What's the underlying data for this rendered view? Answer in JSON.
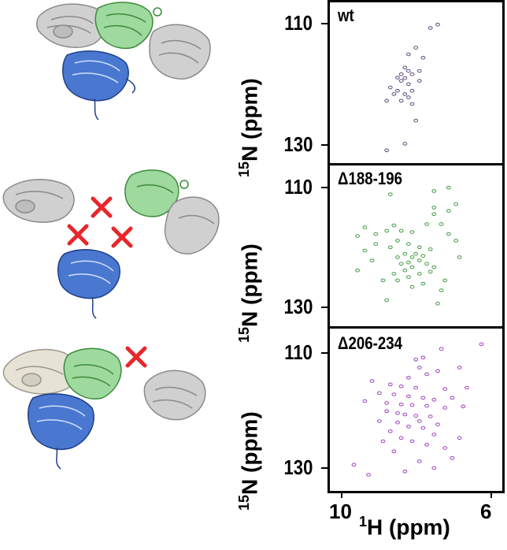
{
  "figure": {
    "x_tick_left": "10",
    "x_tick_right": "6",
    "x_label_sup": "1",
    "x_label_main": "H (ppm)",
    "y_label_sup": "15",
    "y_label_main": "N (ppm)"
  },
  "colors": {
    "gray_domain": "#a9a9a9",
    "green_domain": "#7fcf7f",
    "blue_domain": "#2f5fb8",
    "cross": "#e8262b",
    "wt_peaks": "#5a4a7a",
    "d188_peaks": "#3f9a3f",
    "d206_peaks": "#9b3fbf"
  },
  "chart_data": [
    {
      "type": "scatter",
      "panel_label": "wt",
      "y_ticks": [
        "110",
        "130"
      ],
      "x_axis_units": "1H (ppm)",
      "y_axis_units": "15N (ppm)",
      "xlim": [
        10.2,
        5.9
      ],
      "ylim": [
        110,
        130
      ],
      "peaks": [
        [
          7.5,
          110.5
        ],
        [
          7.7,
          111
        ],
        [
          8.1,
          114
        ],
        [
          8.3,
          115
        ],
        [
          7.9,
          115.5
        ],
        [
          8.4,
          117
        ],
        [
          8.3,
          117.5
        ],
        [
          8.0,
          117.5
        ],
        [
          8.5,
          118
        ],
        [
          8.2,
          118
        ],
        [
          8.6,
          118.5
        ],
        [
          8.4,
          118.6
        ],
        [
          8.0,
          119
        ],
        [
          8.5,
          119
        ],
        [
          8.3,
          119.5
        ],
        [
          8.8,
          120
        ],
        [
          8.2,
          120.5
        ],
        [
          8.6,
          120.5
        ],
        [
          8.4,
          121
        ],
        [
          8.7,
          121
        ],
        [
          8.3,
          121.5
        ],
        [
          8.9,
          122
        ],
        [
          8.5,
          122
        ],
        [
          8.2,
          122.5
        ],
        [
          8.1,
          125
        ],
        [
          8.4,
          128.5
        ],
        [
          8.9,
          129.5
        ]
      ]
    },
    {
      "type": "scatter",
      "panel_label": "Δ188-196",
      "y_ticks": [
        "110",
        "130"
      ],
      "x_axis_units": "1H (ppm)",
      "y_axis_units": "15N (ppm)",
      "xlim": [
        10.2,
        5.9
      ],
      "ylim": [
        110,
        130
      ],
      "peaks": [
        [
          7.0,
          113
        ],
        [
          7.2,
          114
        ],
        [
          7.6,
          113.5
        ],
        [
          7.6,
          114.5
        ],
        [
          7.8,
          116
        ],
        [
          7.4,
          116
        ],
        [
          7.2,
          117.5
        ],
        [
          7.0,
          118.5
        ],
        [
          8.7,
          116.2
        ],
        [
          8.5,
          117
        ],
        [
          8.2,
          117.2
        ],
        [
          8.9,
          117
        ],
        [
          9.5,
          116.5
        ],
        [
          9.2,
          117.5
        ],
        [
          9.7,
          117.8
        ],
        [
          8.6,
          118.5
        ],
        [
          8.3,
          119
        ],
        [
          8.0,
          119.5
        ],
        [
          7.7,
          119.8
        ],
        [
          8.8,
          119.5
        ],
        [
          9.2,
          119
        ],
        [
          9.5,
          120
        ],
        [
          8.1,
          120.5
        ],
        [
          8.4,
          120.5
        ],
        [
          7.9,
          120.8
        ],
        [
          8.6,
          121
        ],
        [
          8.2,
          121
        ],
        [
          8.0,
          121.5
        ],
        [
          8.3,
          121.8
        ],
        [
          8.5,
          122
        ],
        [
          7.8,
          122
        ],
        [
          7.6,
          122.5
        ],
        [
          8.2,
          122.5
        ],
        [
          8.4,
          123
        ],
        [
          8.7,
          123.5
        ],
        [
          8.0,
          123.5
        ],
        [
          7.7,
          123.2
        ],
        [
          8.3,
          124
        ],
        [
          8.6,
          124.5
        ],
        [
          9.0,
          124.5
        ],
        [
          7.9,
          125
        ],
        [
          8.2,
          125.5
        ],
        [
          7.4,
          126
        ],
        [
          8.9,
          127.5
        ],
        [
          7.5,
          128
        ],
        [
          9.7,
          123
        ],
        [
          9.3,
          121.5
        ],
        [
          7.3,
          124.5
        ],
        [
          6.9,
          121
        ],
        [
          8.8,
          111.5
        ],
        [
          7.6,
          111
        ],
        [
          7.2,
          110.5
        ]
      ]
    },
    {
      "type": "scatter",
      "panel_label": "Δ206-234",
      "y_ticks": [
        "110",
        "130"
      ],
      "x_axis_units": "1H (ppm)",
      "y_axis_units": "15N (ppm)",
      "xlim": [
        10.2,
        5.9
      ],
      "ylim": [
        110,
        130
      ],
      "peaks": [
        [
          6.3,
          109.5
        ],
        [
          7.4,
          110.2
        ],
        [
          7.9,
          111.5
        ],
        [
          8.1,
          111.8
        ],
        [
          8.0,
          113
        ],
        [
          6.9,
          113
        ],
        [
          7.5,
          113.5
        ],
        [
          7.8,
          114
        ],
        [
          8.3,
          114.5
        ],
        [
          9.3,
          115
        ],
        [
          8.8,
          115.5
        ],
        [
          8.5,
          115.8
        ],
        [
          8.1,
          116
        ],
        [
          7.3,
          116.2
        ],
        [
          6.7,
          116
        ],
        [
          9.1,
          116.8
        ],
        [
          8.7,
          117
        ],
        [
          8.3,
          117.3
        ],
        [
          7.9,
          117.5
        ],
        [
          7.6,
          117.8
        ],
        [
          7.1,
          117.5
        ],
        [
          9.5,
          118
        ],
        [
          8.9,
          118.3
        ],
        [
          8.5,
          118.5
        ],
        [
          8.2,
          118.6
        ],
        [
          7.8,
          118.7
        ],
        [
          7.3,
          119
        ],
        [
          6.8,
          118.8
        ],
        [
          8.9,
          119.5
        ],
        [
          8.6,
          119.8
        ],
        [
          8.4,
          120
        ],
        [
          8.1,
          120.2
        ],
        [
          7.7,
          120.3
        ],
        [
          8.0,
          121
        ],
        [
          8.6,
          121.2
        ],
        [
          7.5,
          121.5
        ],
        [
          9.1,
          121
        ],
        [
          8.3,
          121.8
        ],
        [
          7.9,
          122
        ],
        [
          8.8,
          122.5
        ],
        [
          7.6,
          123
        ],
        [
          8.5,
          123.5
        ],
        [
          6.9,
          123.5
        ],
        [
          8.2,
          124
        ],
        [
          9.0,
          124
        ],
        [
          7.8,
          124.5
        ],
        [
          7.3,
          125
        ],
        [
          8.7,
          125.5
        ],
        [
          7.1,
          126.5
        ],
        [
          8.0,
          127
        ],
        [
          9.8,
          127.5
        ],
        [
          7.6,
          128
        ],
        [
          8.4,
          128.5
        ],
        [
          9.4,
          129
        ]
      ]
    }
  ]
}
